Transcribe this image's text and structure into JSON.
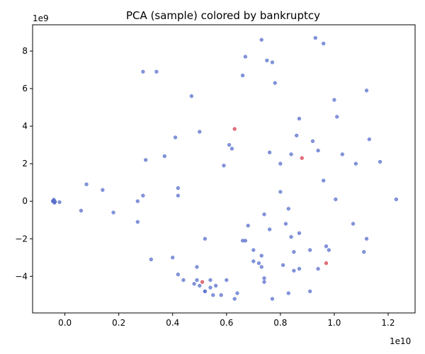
{
  "chart_data": {
    "type": "scatter",
    "title": "PCA (sample) colored by bankruptcy",
    "xlabel": "",
    "ylabel": "",
    "x_offset_label": "1e10",
    "y_offset_label": "1e9",
    "xlim": [
      -0.12,
      1.3
    ],
    "ylim": [
      -5.95,
      9.4
    ],
    "x_ticks": [
      0.0,
      0.2,
      0.4,
      0.6,
      0.8,
      1.0,
      1.2
    ],
    "x_tick_labels": [
      "0.0",
      "0.2",
      "0.4",
      "0.6",
      "0.8",
      "1.0",
      "1.2"
    ],
    "y_ticks": [
      -4,
      -2,
      0,
      2,
      4,
      6,
      8
    ],
    "y_tick_labels": [
      "−4",
      "−2",
      "0",
      "2",
      "4",
      "6",
      "8"
    ],
    "grid": false,
    "colors": {
      "not_bankrupt": "#5a70cc",
      "bankrupt": "#d9404f"
    },
    "series": [
      {
        "class": "not_bankrupt",
        "x": [
          -0.04,
          -0.042,
          -0.038,
          -0.041,
          -0.039,
          -0.043,
          -0.037,
          -0.045,
          -0.02,
          0.06,
          0.08,
          0.14,
          0.18,
          0.27,
          0.27,
          0.29,
          0.29,
          0.3,
          0.32,
          0.34,
          0.37,
          0.4,
          0.41,
          0.42,
          0.42,
          0.42,
          0.44,
          0.47,
          0.48,
          0.49,
          0.49,
          0.5,
          0.5,
          0.52,
          0.52,
          0.52,
          0.54,
          0.54,
          0.55,
          0.56,
          0.58,
          0.59,
          0.6,
          0.61,
          0.62,
          0.63,
          0.64,
          0.66,
          0.66,
          0.67,
          0.67,
          0.68,
          0.7,
          0.7,
          0.72,
          0.73,
          0.73,
          0.73,
          0.74,
          0.74,
          0.74,
          0.75,
          0.76,
          0.76,
          0.77,
          0.77,
          0.78,
          0.8,
          0.8,
          0.81,
          0.82,
          0.83,
          0.83,
          0.84,
          0.84,
          0.85,
          0.85,
          0.86,
          0.87,
          0.87,
          0.87,
          0.91,
          0.91,
          0.92,
          0.93,
          0.94,
          0.94,
          0.96,
          0.96,
          0.97,
          0.98,
          1.0,
          1.01,
          1.03,
          1.07,
          1.08,
          1.11,
          1.12,
          1.12,
          1.13,
          1.17,
          1.23,
          1.005
        ],
        "y": [
          0.0,
          0.05,
          -0.05,
          0.08,
          -0.08,
          0.02,
          -0.02,
          0.0,
          -0.05,
          -0.5,
          0.9,
          0.6,
          -0.6,
          0.0,
          -1.1,
          0.3,
          6.9,
          2.2,
          -3.1,
          6.9,
          2.4,
          -3.0,
          3.4,
          0.7,
          0.3,
          -3.9,
          -4.2,
          5.6,
          -4.4,
          -3.5,
          -4.2,
          3.7,
          -4.5,
          -4.8,
          -4.8,
          -2.0,
          -4.2,
          -4.6,
          -5.0,
          -4.5,
          -5.0,
          1.9,
          -4.2,
          3.0,
          2.8,
          -5.2,
          -4.9,
          -2.1,
          6.7,
          7.7,
          -2.1,
          -1.3,
          -3.2,
          -2.6,
          -3.3,
          -3.5,
          8.6,
          -2.9,
          -0.7,
          -4.1,
          -4.3,
          7.5,
          -1.5,
          2.6,
          -5.2,
          7.4,
          6.3,
          0.5,
          2.0,
          -3.4,
          -1.2,
          -4.9,
          -0.4,
          -1.9,
          2.5,
          -2.7,
          -3.7,
          3.5,
          4.4,
          -3.6,
          -1.7,
          -2.6,
          -4.8,
          3.2,
          8.7,
          -3.6,
          2.7,
          8.4,
          1.1,
          -2.4,
          -2.6,
          5.4,
          4.5,
          2.5,
          -1.2,
          2.0,
          -2.7,
          5.9,
          -2.0,
          3.3,
          2.1,
          0.1,
          0.1
        ]
      },
      {
        "class": "bankrupt",
        "x": [
          0.51,
          0.63,
          0.88,
          0.97
        ],
        "y": [
          -4.3,
          3.85,
          2.3,
          -3.3
        ]
      }
    ]
  }
}
